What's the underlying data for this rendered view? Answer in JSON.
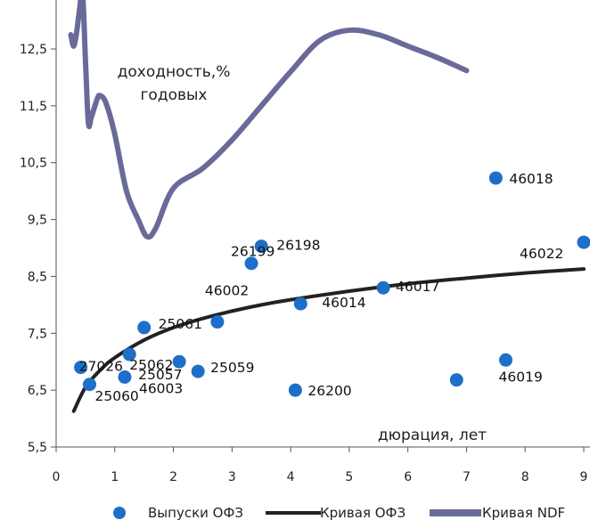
{
  "chart_data": {
    "type": "scatter",
    "title": "",
    "xlim": [
      0,
      9
    ],
    "ylim": [
      5.5,
      13.0
    ],
    "x_ticks": [
      "0",
      "1",
      "2",
      "3",
      "4",
      "5",
      "6",
      "7",
      "8",
      "9"
    ],
    "y_ticks": [
      {
        "v": 5.5,
        "label": "5,5"
      },
      {
        "v": 6.5,
        "label": "6,5"
      },
      {
        "v": 7.5,
        "label": "7,5"
      },
      {
        "v": 8.5,
        "label": "8,5"
      },
      {
        "v": 9.5,
        "label": "9,5"
      },
      {
        "v": 10.5,
        "label": "10,5"
      },
      {
        "v": 11.5,
        "label": "11,5"
      },
      {
        "v": 12.5,
        "label": "12,5"
      }
    ],
    "ylabel": "доходность,%\nгодовых",
    "xlabel": "дюрация, лет",
    "grid": false,
    "legend_position": "bottom",
    "colors": {
      "points": "#1d6fc9",
      "ofz_curve": "#222222",
      "ndf_curve": "#6a6a9a",
      "axis": "#555555"
    },
    "legend": [
      "Выпуски ОФЗ",
      "Кривая ОФЗ",
      "Кривая NDF"
    ],
    "series": [
      {
        "name": "Выпуски ОФЗ",
        "type": "scatter",
        "points": [
          {
            "label": "27026",
            "x": 0.42,
            "y": 6.9
          },
          {
            "label": "25060",
            "x": 0.57,
            "y": 6.6
          },
          {
            "label": "46003",
            "x": 1.17,
            "y": 6.73
          },
          {
            "label": "25062",
            "x": 1.25,
            "y": 7.13
          },
          {
            "label": "25061",
            "x": 1.5,
            "y": 7.6
          },
          {
            "label": "25057",
            "x": 2.1,
            "y": 7.0
          },
          {
            "label": "25059",
            "x": 2.42,
            "y": 6.83
          },
          {
            "label": "46002",
            "x": 2.75,
            "y": 7.7
          },
          {
            "label": "26199",
            "x": 3.33,
            "y": 8.73
          },
          {
            "label": "26198",
            "x": 3.5,
            "y": 9.03
          },
          {
            "label": "26200",
            "x": 4.08,
            "y": 6.5
          },
          {
            "label": "46014",
            "x": 4.17,
            "y": 8.02
          },
          {
            "label": "46017",
            "x": 5.58,
            "y": 8.3
          },
          {
            "label": "",
            "x": 6.83,
            "y": 6.68
          },
          {
            "label": "46018",
            "x": 7.5,
            "y": 10.23
          },
          {
            "label": "46019",
            "x": 7.67,
            "y": 7.03
          },
          {
            "label": "46022",
            "x": 9.0,
            "y": 9.1
          }
        ]
      },
      {
        "name": "Кривая ОФЗ",
        "type": "line",
        "x": [
          0.3,
          0.5,
          0.75,
          1.0,
          1.5,
          2.0,
          2.5,
          3.0,
          3.5,
          4.0,
          5.0,
          6.0,
          7.0,
          8.0,
          9.0
        ],
        "y": [
          6.13,
          6.55,
          6.85,
          7.07,
          7.38,
          7.6,
          7.76,
          7.89,
          8.0,
          8.09,
          8.24,
          8.37,
          8.47,
          8.56,
          8.63
        ]
      },
      {
        "name": "Кривая NDF",
        "type": "line",
        "x": [
          0.25,
          0.3,
          0.35,
          0.4,
          0.45,
          0.5,
          0.55,
          0.6,
          0.7,
          0.75,
          0.85,
          1.0,
          1.2,
          1.4,
          1.55,
          1.7,
          2.0,
          2.5,
          3.0,
          3.5,
          4.0,
          4.5,
          5.0,
          5.5,
          6.0,
          6.5,
          7.0
        ],
        "y": [
          12.75,
          12.55,
          12.8,
          13.2,
          13.5,
          12.3,
          11.2,
          11.3,
          11.62,
          11.68,
          11.55,
          11.0,
          10.0,
          9.5,
          9.2,
          9.35,
          10.05,
          10.4,
          10.9,
          11.5,
          12.1,
          12.65,
          12.83,
          12.75,
          12.55,
          12.35,
          12.12
        ]
      }
    ]
  }
}
